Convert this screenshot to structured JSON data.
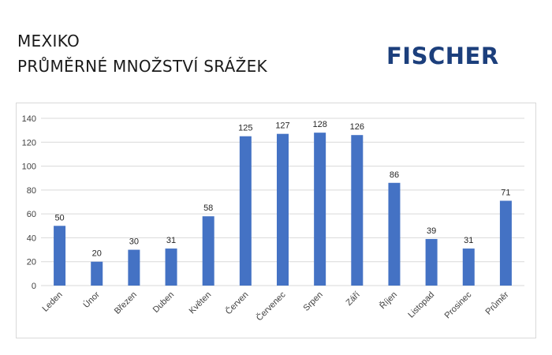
{
  "header": {
    "title_line1": "MEXIKO",
    "title_line2": "PRŮMĚRNÉ MNOŽSTVÍ SRÁŽEK",
    "brand": "FISCHER",
    "brand_color": "#1c3f7c"
  },
  "chart_data": {
    "type": "bar",
    "categories": [
      "Leden",
      "Únor",
      "Březen",
      "Duben",
      "Květen",
      "Červen",
      "Červenec",
      "Srpen",
      "Září",
      "Říjen",
      "Listopad",
      "Prosinec",
      "Průměr"
    ],
    "values": [
      50,
      20,
      30,
      31,
      58,
      125,
      127,
      128,
      126,
      86,
      39,
      31,
      71
    ],
    "ylim": [
      0,
      140
    ],
    "yticks": [
      0,
      20,
      40,
      60,
      80,
      100,
      120,
      140
    ],
    "grid": true,
    "data_labels": true,
    "legend": "none",
    "bar_color": "#4472c4",
    "gridline_color": "#d9d9d9",
    "label_color": "#404040"
  }
}
